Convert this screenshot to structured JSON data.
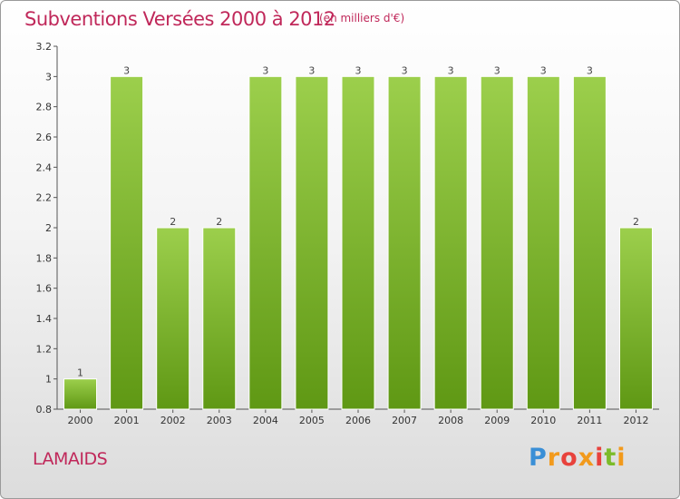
{
  "header": {
    "title": "Subventions Versées 2000 à 2012",
    "unit": "(en milliers d'€)"
  },
  "footer": {
    "location": "LAMAIDS",
    "brand": "Proxiti"
  },
  "colors": {
    "title": "#c0285a",
    "bar_light": "#9ccf4c",
    "bar_dark": "#5f9814"
  },
  "chart_data": {
    "type": "bar",
    "title": "Subventions Versées 2000 à 2012",
    "subtitle": "(en milliers d'€)",
    "xlabel": "",
    "ylabel": "",
    "categories": [
      "2000",
      "2001",
      "2002",
      "2003",
      "2004",
      "2005",
      "2006",
      "2007",
      "2008",
      "2009",
      "2010",
      "2011",
      "2012"
    ],
    "values": [
      1,
      3,
      2,
      2,
      3,
      3,
      3,
      3,
      3,
      3,
      3,
      3,
      2
    ],
    "data_labels": [
      "1",
      "3",
      "2",
      "2",
      "3",
      "3",
      "3",
      "3",
      "3",
      "3",
      "3",
      "3",
      "2"
    ],
    "ylim": [
      0.8,
      3.2
    ],
    "yticks": [
      0.8,
      1,
      1.2,
      1.4,
      1.6,
      1.8,
      2,
      2.2,
      2.4,
      2.6,
      2.8,
      3,
      3.2
    ],
    "ytick_labels": [
      "0.8",
      "1",
      "1.2",
      "1.4",
      "1.6",
      "1.8",
      "2",
      "2.2",
      "2.4",
      "2.6",
      "2.8",
      "3",
      "3.2"
    ],
    "grid": false,
    "legend": "none"
  }
}
